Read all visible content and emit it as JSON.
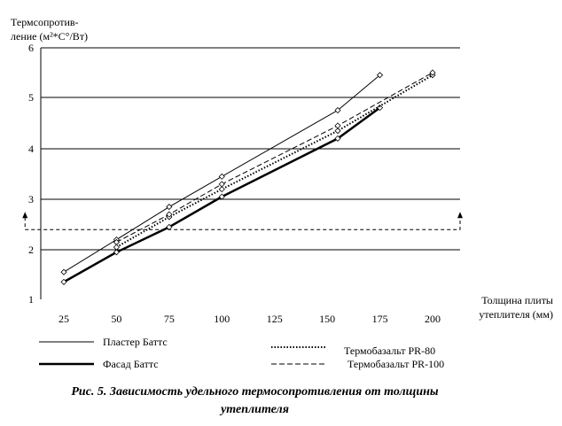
{
  "chart_data": {
    "type": "line",
    "title": "",
    "ylabel_line1": "Термсопротив-",
    "ylabel_line2": "ление (м²*С°/Вт)",
    "xlabel_line1": "Толщина плиты",
    "xlabel_line2": "утеплителя (мм)",
    "x_ticks": [
      "25",
      "50",
      "75",
      "100",
      "125",
      "150",
      "175",
      "200"
    ],
    "y_ticks": [
      "1",
      "2",
      "3",
      "4",
      "5",
      "6"
    ],
    "grid": "horizontal",
    "legend_position": "bottom",
    "series": [
      {
        "name": "Пластер Баттс",
        "style": "thin-solid",
        "color": "#000000",
        "x": [
          25,
          50,
          75,
          100,
          155,
          175
        ],
        "y": [
          1.55,
          2.2,
          2.85,
          3.45,
          4.75,
          5.45
        ]
      },
      {
        "name": "Фасад Баттс",
        "style": "thick-solid",
        "color": "#000000",
        "x": [
          25,
          50,
          75,
          100,
          155,
          175
        ],
        "y": [
          1.35,
          1.95,
          2.45,
          3.05,
          4.2,
          4.8
        ]
      },
      {
        "name": "Термобазальт PR-80",
        "style": "dotted",
        "color": "#000000",
        "x": [
          50,
          75,
          100,
          155,
          200
        ],
        "y": [
          2.05,
          2.65,
          3.2,
          4.35,
          5.45
        ]
      },
      {
        "name": "Термобазальт PR-100",
        "style": "dashed",
        "color": "#000000",
        "x": [
          50,
          75,
          100,
          155,
          200
        ],
        "y": [
          2.15,
          2.7,
          3.3,
          4.45,
          5.5
        ]
      }
    ],
    "annotations": [
      {
        "type": "dashed-bracket-with-arrows",
        "y": 2.4,
        "x_from": 15,
        "x_to": 208
      }
    ]
  },
  "caption": {
    "line1": "Рис. 5. Зависимость удельного термосопротивления от толщины",
    "line2": "утеплителя"
  }
}
